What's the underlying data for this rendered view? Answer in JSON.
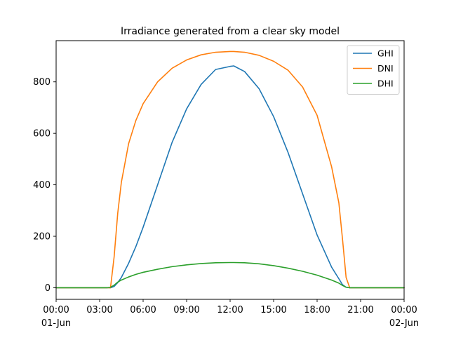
{
  "chart_data": {
    "type": "line",
    "title": "Irradiance generated from a clear sky model",
    "xlabel": "",
    "ylabel": "",
    "xlim": [
      0,
      24
    ],
    "ylim": [
      -45,
      960
    ],
    "grid": false,
    "legend_position": "top-right",
    "x_ticks": [
      {
        "value": 0,
        "label": "00:00",
        "sublabel": "01-Jun"
      },
      {
        "value": 3,
        "label": "03:00",
        "sublabel": ""
      },
      {
        "value": 6,
        "label": "06:00",
        "sublabel": ""
      },
      {
        "value": 9,
        "label": "09:00",
        "sublabel": ""
      },
      {
        "value": 12,
        "label": "12:00",
        "sublabel": ""
      },
      {
        "value": 15,
        "label": "15:00",
        "sublabel": ""
      },
      {
        "value": 18,
        "label": "18:00",
        "sublabel": ""
      },
      {
        "value": 21,
        "label": "21:00",
        "sublabel": ""
      },
      {
        "value": 24,
        "label": "00:00",
        "sublabel": "02-Jun"
      }
    ],
    "y_ticks": [
      {
        "value": 0,
        "label": "0"
      },
      {
        "value": 200,
        "label": "200"
      },
      {
        "value": 400,
        "label": "400"
      },
      {
        "value": 600,
        "label": "600"
      },
      {
        "value": 800,
        "label": "800"
      }
    ],
    "x": [
      0,
      1,
      2,
      3,
      3.5,
      3.75,
      4.0,
      4.25,
      4.5,
      5,
      5.5,
      6,
      7,
      8,
      9,
      10,
      11,
      12,
      12.25,
      13,
      14,
      15,
      16,
      17,
      18,
      19,
      19.5,
      19.75,
      20.0,
      20.25,
      20.5,
      21,
      22,
      23,
      24
    ],
    "series": [
      {
        "name": "GHI",
        "color": "#1f77b4",
        "values": [
          0,
          0,
          0,
          0,
          0,
          0,
          5,
          20,
          40,
          95,
          160,
          235,
          400,
          565,
          695,
          790,
          848,
          860,
          862,
          840,
          773,
          665,
          525,
          365,
          205,
          80,
          35,
          12,
          2,
          0,
          0,
          0,
          0,
          0,
          0
        ]
      },
      {
        "name": "DNI",
        "color": "#ff7f0e",
        "values": [
          0,
          0,
          0,
          0,
          0,
          0,
          120,
          290,
          410,
          560,
          650,
          715,
          800,
          853,
          885,
          905,
          915,
          918,
          918,
          915,
          903,
          880,
          845,
          780,
          670,
          470,
          330,
          190,
          40,
          0,
          0,
          0,
          0,
          0,
          0
        ]
      },
      {
        "name": "DHI",
        "color": "#2ca02c",
        "values": [
          0,
          0,
          0,
          0,
          0,
          2,
          10,
          22,
          30,
          42,
          52,
          60,
          72,
          82,
          89,
          94,
          97,
          98,
          98,
          97,
          93,
          86,
          76,
          64,
          49,
          30,
          18,
          9,
          2,
          0,
          0,
          0,
          0,
          0,
          0
        ]
      }
    ]
  }
}
